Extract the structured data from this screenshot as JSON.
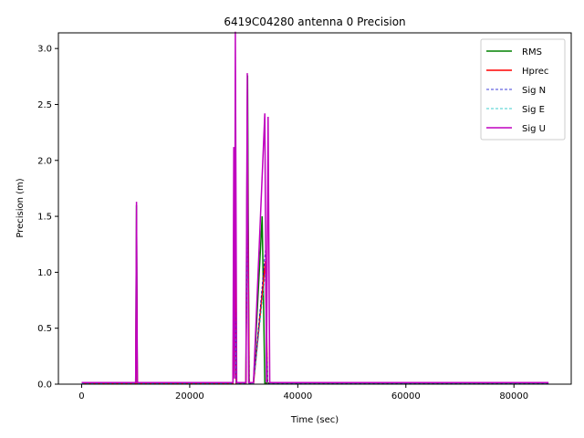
{
  "chart_data": {
    "type": "line",
    "title": "6419C04280 antenna 0 Precision",
    "xlabel": "Time (sec)",
    "ylabel": "Precision (m)",
    "xlim": [
      -4300,
      90600
    ],
    "ylim": [
      0,
      3.14
    ],
    "xticks": [
      0,
      20000,
      40000,
      60000,
      80000
    ],
    "yticks": [
      0.0,
      0.5,
      1.0,
      1.5,
      2.0,
      2.5,
      3.0
    ],
    "xtick_labels": [
      "0",
      "20000",
      "40000",
      "60000",
      "80000"
    ],
    "ytick_labels": [
      "0.0",
      "0.5",
      "1.0",
      "1.5",
      "2.0",
      "2.5",
      "3.0"
    ],
    "legend_position": "top-right",
    "grid": false,
    "series": [
      {
        "name": "RMS",
        "color": "#008000",
        "style": "solid",
        "points": [
          [
            0,
            0.01
          ],
          [
            10000,
            0.01
          ],
          [
            10150,
            1.6
          ],
          [
            10300,
            0.01
          ],
          [
            28000,
            0.01
          ],
          [
            28300,
            2.0
          ],
          [
            28600,
            0.01
          ],
          [
            30400,
            0.01
          ],
          [
            30700,
            2.76
          ],
          [
            31000,
            0.01
          ],
          [
            31800,
            0.01
          ],
          [
            33400,
            1.5
          ],
          [
            33900,
            0.01
          ],
          [
            34300,
            0.01
          ],
          [
            86400,
            0.01
          ]
        ]
      },
      {
        "name": "Hprec",
        "color": "#ff0000",
        "style": "solid",
        "points": [
          [
            0,
            0.005
          ],
          [
            10000,
            0.005
          ],
          [
            10150,
            1.1
          ],
          [
            10300,
            0.005
          ],
          [
            28000,
            0.005
          ],
          [
            28300,
            1.4
          ],
          [
            28600,
            0.005
          ],
          [
            30400,
            0.005
          ],
          [
            30700,
            2.0
          ],
          [
            31000,
            0.005
          ],
          [
            31800,
            0.005
          ],
          [
            34000,
            1.1
          ],
          [
            34400,
            0.005
          ],
          [
            86400,
            0.005
          ]
        ]
      },
      {
        "name": "Sig N",
        "color": "#0000cc",
        "style": "dashed",
        "points": [
          [
            0,
            0.004
          ],
          [
            10000,
            0.004
          ],
          [
            10150,
            0.8
          ],
          [
            10300,
            0.004
          ],
          [
            28000,
            0.004
          ],
          [
            28300,
            1.0
          ],
          [
            28600,
            0.004
          ],
          [
            30400,
            0.004
          ],
          [
            30700,
            1.5
          ],
          [
            31000,
            0.004
          ],
          [
            31800,
            0.004
          ],
          [
            34000,
            1.2
          ],
          [
            34400,
            0.004
          ],
          [
            86400,
            0.004
          ]
        ]
      },
      {
        "name": "Sig E",
        "color": "#00bfbf",
        "style": "dashed",
        "points": [
          [
            0,
            0.004
          ],
          [
            10000,
            0.004
          ],
          [
            10150,
            0.7
          ],
          [
            10300,
            0.004
          ],
          [
            28000,
            0.004
          ],
          [
            28300,
            0.9
          ],
          [
            28600,
            0.004
          ],
          [
            30400,
            0.004
          ],
          [
            30700,
            1.3
          ],
          [
            31000,
            0.004
          ],
          [
            31800,
            0.004
          ],
          [
            34000,
            1.0
          ],
          [
            34400,
            0.004
          ],
          [
            86400,
            0.004
          ]
        ]
      },
      {
        "name": "Sig U",
        "color": "#bf00bf",
        "style": "solid",
        "points": [
          [
            0,
            0.015
          ],
          [
            10000,
            0.015
          ],
          [
            10150,
            1.63
          ],
          [
            10300,
            0.015
          ],
          [
            28000,
            0.015
          ],
          [
            28150,
            2.12
          ],
          [
            28300,
            0.05
          ],
          [
            28450,
            3.15
          ],
          [
            28700,
            0.015
          ],
          [
            30400,
            0.015
          ],
          [
            30650,
            2.78
          ],
          [
            30900,
            0.015
          ],
          [
            31800,
            0.015
          ],
          [
            33900,
            2.42
          ],
          [
            34200,
            0.015
          ],
          [
            34500,
            2.39
          ],
          [
            34800,
            0.015
          ],
          [
            86400,
            0.015
          ]
        ]
      }
    ]
  }
}
